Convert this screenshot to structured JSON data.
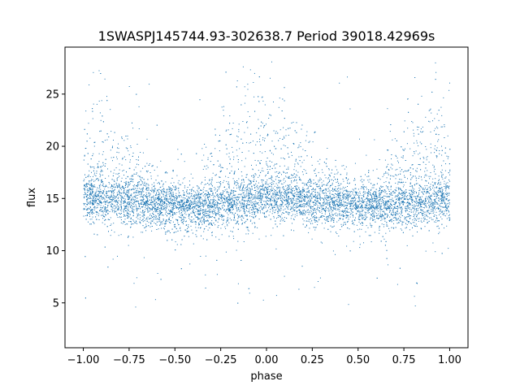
{
  "chart_data": {
    "type": "scatter",
    "title": "1SWASPJ145744.93-302638.7 Period 39018.42969s",
    "xlabel": "phase",
    "ylabel": "flux",
    "xlim": [
      -1.1,
      1.1
    ],
    "ylim": [
      0.7,
      29.5
    ],
    "xticks": [
      -1.0,
      -0.75,
      -0.5,
      -0.25,
      0.0,
      0.25,
      0.5,
      0.75,
      1.0
    ],
    "xtick_labels": [
      "−1.00",
      "−0.75",
      "−0.50",
      "−0.25",
      "0.00",
      "0.25",
      "0.50",
      "0.75",
      "1.00"
    ],
    "yticks": [
      5,
      10,
      15,
      20,
      25
    ],
    "ytick_labels": [
      "5",
      "10",
      "15",
      "20",
      "25"
    ],
    "grid": false,
    "point_color": "#1f77b4",
    "light_curve": {
      "phase": [
        -1.0,
        -0.9,
        -0.8,
        -0.7,
        -0.6,
        -0.5,
        -0.4,
        -0.3,
        -0.2,
        -0.1,
        0.0,
        0.1,
        0.2,
        0.3,
        0.4,
        0.5,
        0.6,
        0.7,
        0.8,
        0.9,
        1.0
      ],
      "baseline_flux": [
        15.0,
        14.9,
        14.7,
        14.5,
        14.3,
        14.1,
        14.0,
        14.1,
        14.4,
        14.7,
        15.0,
        14.9,
        14.7,
        14.5,
        14.3,
        14.1,
        14.0,
        14.1,
        14.4,
        14.7,
        15.0
      ],
      "upper_envelope_flux": [
        25.0,
        23.5,
        21.0,
        19.0,
        17.5,
        16.5,
        16.8,
        19.5,
        23.0,
        25.0,
        25.0,
        23.5,
        21.0,
        19.0,
        17.5,
        16.5,
        16.8,
        19.5,
        23.0,
        25.0,
        25.0
      ]
    }
  }
}
